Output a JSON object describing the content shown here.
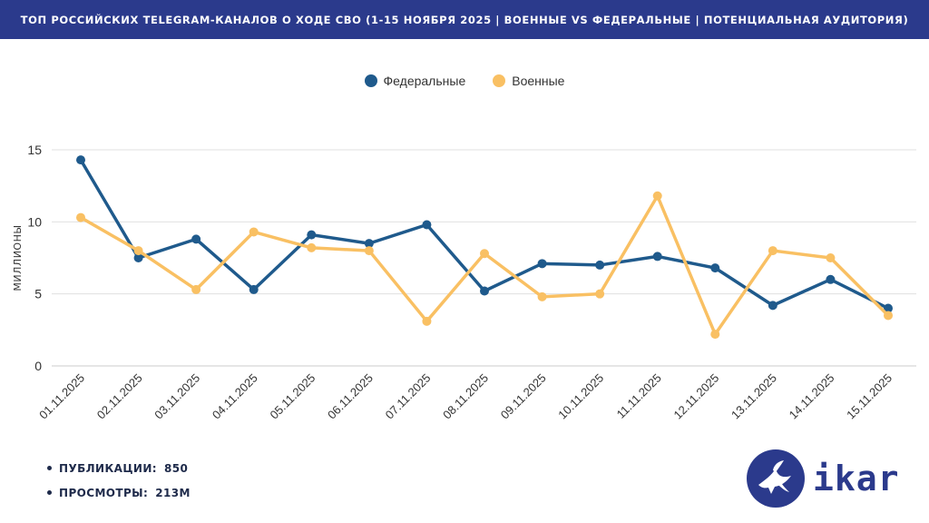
{
  "header": {
    "title": "ТОП РОССИЙСКИХ TELEGRAM-КАНАЛОВ О ХОДЕ СВО (1-15 НОЯБРЯ 2025 | ВОЕННЫЕ VS ФЕДЕРАЛЬНЫЕ | ПОТЕНЦИАЛЬНАЯ АУДИТОРИЯ)"
  },
  "colors": {
    "federal": "#1f5a8c",
    "military": "#f9c063",
    "header_bg": "#2b3a8c",
    "grid": "#e0e0e0"
  },
  "chart_data": {
    "type": "line",
    "title": "",
    "xlabel": "",
    "ylabel": "МИЛЛИОНЫ",
    "ylim": [
      0,
      15
    ],
    "yticks": [
      0,
      5,
      10,
      15
    ],
    "grid": true,
    "legend_position": "top-center",
    "categories": [
      "01.11.2025",
      "02.11.2025",
      "03.11.2025",
      "04.11.2025",
      "05.11.2025",
      "06.11.2025",
      "07.11.2025",
      "08.11.2025",
      "09.11.2025",
      "10.11.2025",
      "11.11.2025",
      "12.11.2025",
      "13.11.2025",
      "14.11.2025",
      "15.11.2025"
    ],
    "series": [
      {
        "name": "Федеральные",
        "color": "#1f5a8c",
        "values": [
          14.3,
          7.5,
          8.8,
          5.3,
          9.1,
          8.5,
          9.8,
          5.2,
          7.1,
          7.0,
          7.6,
          6.8,
          4.2,
          6.0,
          4.0
        ]
      },
      {
        "name": "Военные",
        "color": "#f9c063",
        "values": [
          10.3,
          8.0,
          5.3,
          9.3,
          8.2,
          8.0,
          3.1,
          7.8,
          4.8,
          5.0,
          11.8,
          2.2,
          8.0,
          7.5,
          3.5
        ]
      }
    ]
  },
  "stats": [
    {
      "label": "ПУБЛИКАЦИИ:",
      "value": "850"
    },
    {
      "label": "ПРОСМОТРЫ:",
      "value": "213M"
    }
  ],
  "logo": {
    "text": "ikar",
    "icon": "dove-icon"
  }
}
